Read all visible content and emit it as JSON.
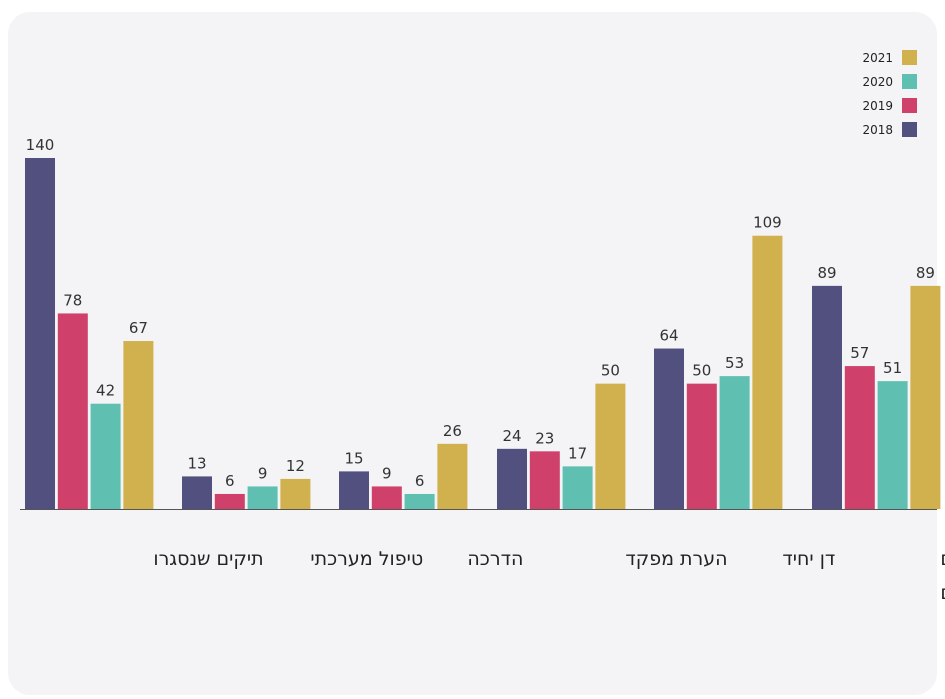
{
  "chart_data": {
    "type": "bar",
    "categories": [
      [
        "תיקים שנסגרו"
      ],
      [
        "טיפול מערכתי"
      ],
      [
        "הדרכה"
      ],
      [
        "הערת מפקד"
      ],
      [
        "דן יחיד"
      ],
      [
        "כתבי אישום",
        "שהוגשו לביד\"ם"
      ]
    ],
    "series": [
      {
        "name": "2018",
        "color": "#52507f",
        "values": [
          140,
          13,
          15,
          24,
          64,
          89
        ]
      },
      {
        "name": "2019",
        "color": "#cf406b",
        "values": [
          78,
          6,
          9,
          23,
          50,
          57
        ]
      },
      {
        "name": "2020",
        "color": "#5fbfb1",
        "values": [
          42,
          9,
          6,
          17,
          53,
          51
        ]
      },
      {
        "name": "2021",
        "color": "#d1b04e",
        "values": [
          67,
          12,
          26,
          50,
          109,
          89
        ]
      }
    ],
    "ylim": [
      0,
      140
    ],
    "legend_position": "top-right",
    "legend_order": [
      "2021",
      "2020",
      "2019",
      "2018"
    ],
    "grid": false
  }
}
